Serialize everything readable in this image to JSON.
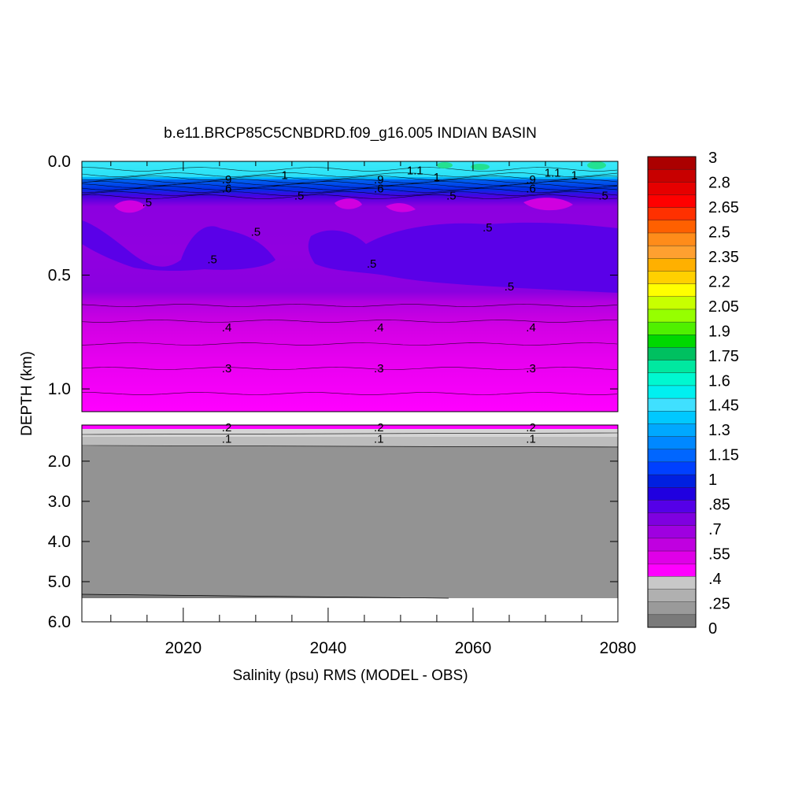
{
  "chart_data": {
    "type": "heatmap",
    "title": "b.e11.BRCP85C5CNBDRD.f09_g16.005 INDIAN BASIN",
    "xlabel": "Salinity (psu) RMS (MODEL - OBS)",
    "ylabel": "DEPTH (km)",
    "xlim": [
      2006,
      2080
    ],
    "x_ticks": [
      "2020",
      "2040",
      "2060",
      "2080"
    ],
    "x_tick_values": [
      2020,
      2040,
      2060,
      2080
    ],
    "upper_panel": {
      "ylim": [
        0.0,
        1.1
      ],
      "y_ticks": [
        "0.0",
        "0.5",
        "1.0"
      ],
      "y_tick_values": [
        0.0,
        0.5,
        1.0
      ]
    },
    "lower_panel": {
      "ylim": [
        1.1,
        6.0
      ],
      "y_ticks": [
        "2.0",
        "3.0",
        "4.0",
        "5.0",
        "6.0"
      ],
      "y_tick_values": [
        2.0,
        3.0,
        4.0,
        5.0,
        6.0
      ]
    },
    "colorbar": {
      "min": 0,
      "max": 3,
      "labels": [
        "3",
        "2.8",
        "2.65",
        "2.5",
        "2.35",
        "2.2",
        "2.05",
        "1.9",
        "1.75",
        "1.6",
        "1.45",
        "1.3",
        "1.15",
        "1",
        ".85",
        ".7",
        ".55",
        ".4",
        ".25",
        "0"
      ],
      "colors": [
        "#ab0000",
        "#c80000",
        "#e60000",
        "#ff0000",
        "#ff3000",
        "#ff6000",
        "#ff8c1a",
        "#ffa030",
        "#ffb000",
        "#ffd000",
        "#ffff00",
        "#c8ff00",
        "#96ff00",
        "#50f000",
        "#00d800",
        "#00c060",
        "#00e8a0",
        "#00f8d0",
        "#00f0f0",
        "#40e0ff",
        "#00c8ff",
        "#00a8ff",
        "#0088ff",
        "#0066ff",
        "#0040ff",
        "#0020e0",
        "#2000e0",
        "#5500e8",
        "#7f00e0",
        "#9f00e0",
        "#c000e0",
        "#e000e8",
        "#ff00ff",
        "#c8c8c8",
        "#b0b0b0",
        "#9a9a9a",
        "#7a7a7a"
      ]
    },
    "contour_labels": [
      {
        "text": "1",
        "x": 2034,
        "depth": 0.06
      },
      {
        "text": "1.1",
        "x": 2052,
        "depth": 0.04
      },
      {
        "text": "1",
        "x": 2055,
        "depth": 0.07
      },
      {
        "text": "1.1",
        "x": 2071,
        "depth": 0.05
      },
      {
        "text": "1",
        "x": 2074,
        "depth": 0.06
      },
      {
        "text": ".9",
        "x": 2026,
        "depth": 0.08
      },
      {
        "text": ".9",
        "x": 2047,
        "depth": 0.08
      },
      {
        "text": ".9",
        "x": 2068,
        "depth": 0.08
      },
      {
        "text": ".6",
        "x": 2026,
        "depth": 0.12
      },
      {
        "text": ".6",
        "x": 2047,
        "depth": 0.12
      },
      {
        "text": ".6",
        "x": 2068,
        "depth": 0.12
      },
      {
        "text": ".5",
        "x": 2036,
        "depth": 0.15
      },
      {
        "text": ".5",
        "x": 2057,
        "depth": 0.15
      },
      {
        "text": ".5",
        "x": 2078,
        "depth": 0.15
      },
      {
        "text": ".5",
        "x": 2015,
        "depth": 0.18
      },
      {
        "text": ".5",
        "x": 2030,
        "depth": 0.31
      },
      {
        "text": ".5",
        "x": 2062,
        "depth": 0.29
      },
      {
        "text": ".5",
        "x": 2024,
        "depth": 0.43
      },
      {
        "text": ".5",
        "x": 2046,
        "depth": 0.45
      },
      {
        "text": ".5",
        "x": 2065,
        "depth": 0.55
      },
      {
        "text": ".4",
        "x": 2026,
        "depth": 0.73
      },
      {
        "text": ".4",
        "x": 2047,
        "depth": 0.73
      },
      {
        "text": ".4",
        "x": 2068,
        "depth": 0.73
      },
      {
        "text": ".3",
        "x": 2026,
        "depth": 0.91
      },
      {
        "text": ".3",
        "x": 2047,
        "depth": 0.91
      },
      {
        "text": ".3",
        "x": 2068,
        "depth": 0.91
      },
      {
        "text": ".2",
        "x": 2026,
        "depth": 1.16
      },
      {
        "text": ".2",
        "x": 2047,
        "depth": 1.16
      },
      {
        "text": ".2",
        "x": 2068,
        "depth": 1.16
      },
      {
        "text": ".1",
        "x": 2026,
        "depth": 1.44
      },
      {
        "text": ".1",
        "x": 2047,
        "depth": 1.44
      },
      {
        "text": ".1",
        "x": 2068,
        "depth": 1.44
      }
    ]
  }
}
